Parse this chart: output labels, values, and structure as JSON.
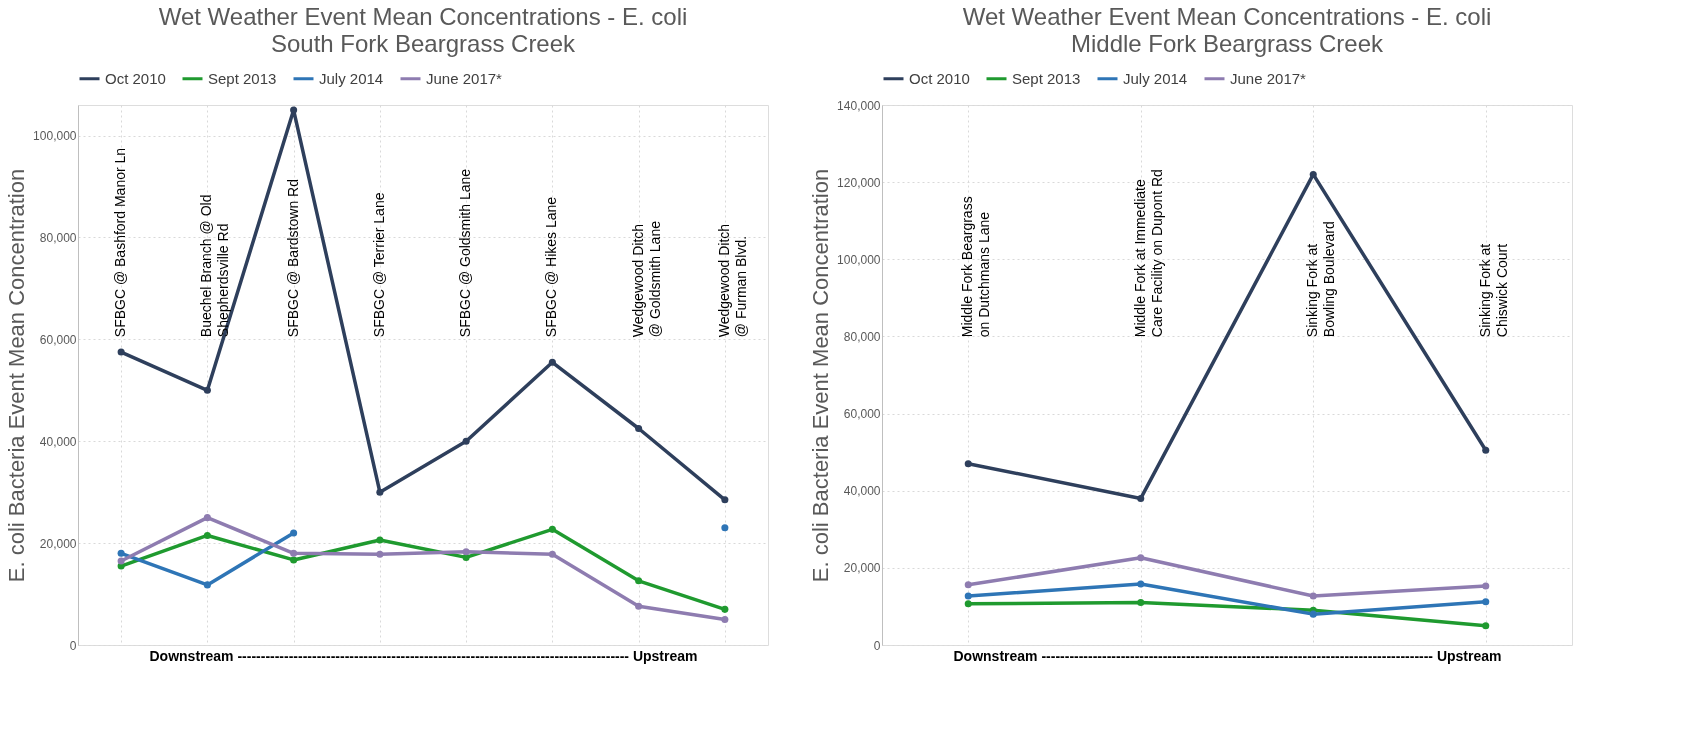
{
  "chart_data": [
    {
      "type": "line",
      "title": "Wet Weather Event Mean Concentrations - E. coli",
      "subtitle": "South Fork Beargrass Creek",
      "xlabel": "Downstream ------------------------------------------------------------------------------------ Upstream",
      "ylabel": "E. coli Bacteria Event Mean Concentration",
      "categories": [
        "SFBGC @ Bashford Manor Ln",
        "Buechel Branch @ Old Shepherdsville Rd",
        "SFBGC @ Bardstown Rd",
        "SFBGC @ Terrier Lane",
        "SFBGC @ Goldsmith Lane",
        "SFBGC @ Hikes Lane",
        "Wedgewood Ditch @ Goldsmith Lane",
        "Wedgewood Ditch @ Furman Blvd."
      ],
      "series": [
        {
          "name": "Oct 2010",
          "color": "#2e3f5c",
          "values": [
            57500,
            50000,
            105000,
            30000,
            40000,
            55500,
            42500,
            28500
          ]
        },
        {
          "name": "Sept 2013",
          "color": "#1f9a2f",
          "values": [
            15500,
            21500,
            16700,
            20600,
            17200,
            22700,
            12600,
            7000
          ]
        },
        {
          "name": "July 2014",
          "color": "#2e75b6",
          "values": [
            18000,
            11800,
            22000,
            null,
            null,
            null,
            null,
            23000
          ]
        },
        {
          "name": "June 2017*",
          "color": "#8e7cb0",
          "values": [
            16500,
            25000,
            18000,
            17800,
            18300,
            17800,
            7600,
            5000
          ]
        }
      ],
      "ylim": [
        0,
        106000
      ],
      "yticks": [
        0,
        {
          "value": 20000,
          "label": "20,000"
        },
        {
          "value": 40000,
          "label": "40,000"
        },
        {
          "value": 60000,
          "label": "60,000"
        },
        {
          "value": 80000,
          "label": "80,000"
        },
        {
          "value": 100000,
          "label": "100,000"
        }
      ],
      "grid": true,
      "legend": "top",
      "marker": "circle",
      "line_style": "solid"
    },
    {
      "type": "line",
      "title": "Wet Weather Event Mean Concentrations - E. coli",
      "subtitle": "Middle Fork Beargrass Creek",
      "xlabel": "Downstream ------------------------------------------------------------------------------------ Upstream",
      "ylabel": "E. coli Bacteria Event Mean Concentration",
      "categories": [
        "Middle Fork Beargrass on Dutchmans Lane",
        "Middle Fork at Immediate Care Facility on Dupont Rd",
        "Sinking Fork at Bowling Boulevard",
        "Sinking Fork at Chiswick Court"
      ],
      "series": [
        {
          "name": "Oct 2010",
          "color": "#2e3f5c",
          "values": [
            47000,
            38000,
            122000,
            50500
          ]
        },
        {
          "name": "Sept 2013",
          "color": "#1f9a2f",
          "values": [
            10700,
            11000,
            9000,
            5000
          ]
        },
        {
          "name": "July 2014",
          "color": "#2e75b6",
          "values": [
            12700,
            15800,
            8000,
            11200
          ]
        },
        {
          "name": "June 2017*",
          "color": "#8e7cb0",
          "values": [
            15600,
            22600,
            12700,
            15300
          ]
        }
      ],
      "ylim": [
        0,
        140000
      ],
      "yticks": [
        0,
        {
          "value": 20000,
          "label": "20,000"
        },
        {
          "value": 40000,
          "label": "40,000"
        },
        {
          "value": 60000,
          "label": "60,000"
        },
        {
          "value": 80000,
          "label": "80,000"
        },
        {
          "value": 100000,
          "label": "100,000"
        },
        {
          "value": 120000,
          "label": "120,000"
        },
        {
          "value": 140000,
          "label": "140,000"
        }
      ],
      "grid": true,
      "legend": "top",
      "marker": "circle",
      "line_style": "solid"
    }
  ]
}
